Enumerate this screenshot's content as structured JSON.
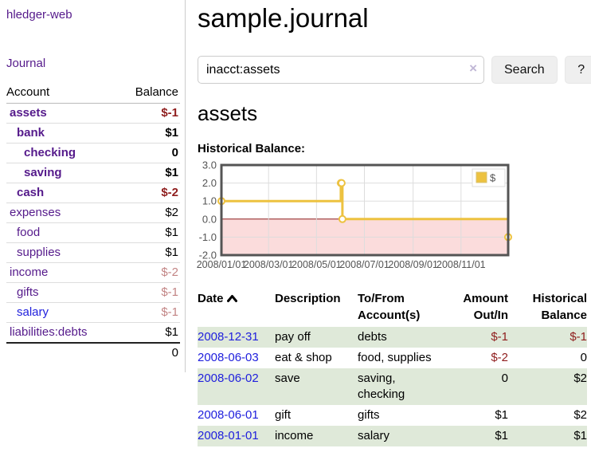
{
  "app_title": "hledger-web",
  "sidebar": {
    "journal_link": "Journal",
    "header": {
      "account": "Account",
      "balance": "Balance"
    },
    "accounts": [
      {
        "name": "assets",
        "indent": 0,
        "balance": "$-1",
        "name_style": "purple b",
        "bal_style": "neg b"
      },
      {
        "name": "bank",
        "indent": 1,
        "balance": "$1",
        "name_style": "purple b",
        "bal_style": "b"
      },
      {
        "name": "checking",
        "indent": 2,
        "balance": "0",
        "name_style": "purple b",
        "bal_style": "b"
      },
      {
        "name": "saving",
        "indent": 2,
        "balance": "$1",
        "name_style": "purple b",
        "bal_style": "b"
      },
      {
        "name": "cash",
        "indent": 1,
        "balance": "$-2",
        "name_style": "purple b",
        "bal_style": "neg b"
      },
      {
        "name": "expenses",
        "indent": 0,
        "balance": "$2",
        "name_style": "purple",
        "bal_style": ""
      },
      {
        "name": "food",
        "indent": 1,
        "balance": "$1",
        "name_style": "purple",
        "bal_style": ""
      },
      {
        "name": "supplies",
        "indent": 1,
        "balance": "$1",
        "name_style": "purple",
        "bal_style": ""
      },
      {
        "name": "income",
        "indent": 0,
        "balance": "$-2",
        "name_style": "purple",
        "bal_style": "neg dim"
      },
      {
        "name": "gifts",
        "indent": 1,
        "balance": "$-1",
        "name_style": "purple",
        "bal_style": "neg dim"
      },
      {
        "name": "salary",
        "indent": 1,
        "balance": "$-1",
        "name_style": "blue",
        "bal_style": "neg dim"
      },
      {
        "name": "liabilities:debts",
        "indent": 0,
        "balance": "$1",
        "name_style": "purple",
        "bal_style": ""
      }
    ],
    "total": "0"
  },
  "main": {
    "title": "sample.journal",
    "search": {
      "value": "inacct:assets",
      "clear_label": "×",
      "button_label": "Search",
      "help_label": "?"
    },
    "account_title": "assets",
    "chart_heading": "Historical Balance:"
  },
  "chart_data": {
    "type": "line",
    "title": "Historical Balance of assets",
    "step": true,
    "legend": [
      {
        "label": "$",
        "color": "#edc240"
      }
    ],
    "legend_position": "top-right",
    "grid": true,
    "xlim": [
      "2008-01-01",
      "2008-12-31"
    ],
    "ylim": [
      -2.0,
      3.0
    ],
    "x_ticks": [
      "2008/01/01",
      "2008/03/01",
      "2008/05/01",
      "2008/07/01",
      "2008/09/01",
      "2008/11/01"
    ],
    "y_ticks": [
      3.0,
      2.0,
      1.0,
      0.0,
      -1.0,
      -2.0
    ],
    "series": [
      {
        "name": "$",
        "points": [
          {
            "x": "2008-01-01",
            "y": 1
          },
          {
            "x": "2008-06-01",
            "y": 2
          },
          {
            "x": "2008-06-02",
            "y": 2
          },
          {
            "x": "2008-06-03",
            "y": 0
          },
          {
            "x": "2008-12-31",
            "y": -1
          }
        ]
      }
    ],
    "style": {
      "line": "#edc240",
      "marker_fill": "#ffffff",
      "grid": "#dddddd",
      "border": "#545454",
      "zero_line": "#8b1a1a",
      "negative_fill": "#fbdcdc",
      "tick_label": "#545454",
      "legend_square_border": "#d9c270"
    }
  },
  "transactions": {
    "headers": {
      "date": "Date",
      "description": "Description",
      "accounts": "To/From Account(s)",
      "amount": "Amount Out/In",
      "balance": "Historical Balance"
    },
    "sort_icon": "chevron-up-icon",
    "rows": [
      {
        "date": "2008-12-31",
        "description": "pay off",
        "accounts": "debts",
        "amount": "$-1",
        "amount_neg": true,
        "balance": "$-1",
        "balance_neg": true,
        "shaded": true
      },
      {
        "date": "2008-06-03",
        "description": "eat & shop",
        "accounts": "food, supplies",
        "amount": "$-2",
        "amount_neg": true,
        "balance": "0",
        "balance_neg": false,
        "shaded": false
      },
      {
        "date": "2008-06-02",
        "description": "save",
        "accounts": "saving, checking",
        "amount": "0",
        "amount_neg": false,
        "balance": "$2",
        "balance_neg": false,
        "shaded": true
      },
      {
        "date": "2008-06-01",
        "description": "gift",
        "accounts": "gifts",
        "amount": "$1",
        "amount_neg": false,
        "balance": "$2",
        "balance_neg": false,
        "shaded": false
      },
      {
        "date": "2008-01-01",
        "description": "income",
        "accounts": "salary",
        "amount": "$1",
        "amount_neg": false,
        "balance": "$1",
        "balance_neg": false,
        "shaded": true
      }
    ]
  },
  "colors": {
    "link_purple": "#551a8b",
    "link_blue": "#2020dd",
    "negative": "#8f1d1d",
    "row_shade": "#dfe9d9"
  }
}
